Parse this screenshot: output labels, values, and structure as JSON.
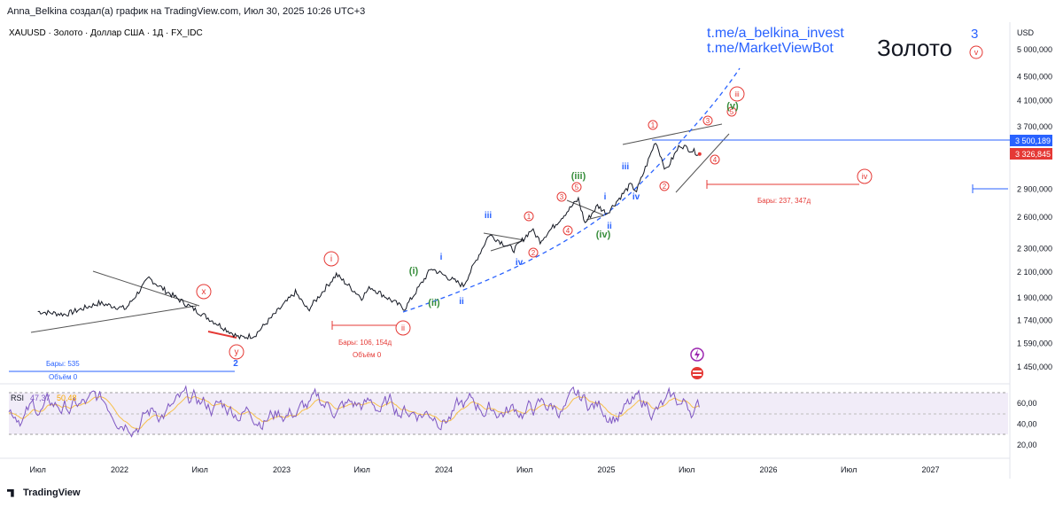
{
  "header": {
    "text": "Anna_Belkina создал(а) график на TradingView.com, Июл 30, 2025 10:26 UTC+3"
  },
  "symbol": {
    "text": "XAUUSD · Золото · Доллар США · 1Д · FX_IDC"
  },
  "watermark": {
    "link1": "t.me/a_belkina_invest",
    "link2": "t.me/MarketViewBot",
    "title": "Золото",
    "wave3": "3",
    "wave_v": "v"
  },
  "colors": {
    "up": "#26a69a",
    "bear": "#e53935",
    "blue": "#2962ff",
    "green": "#388e3c",
    "rsi": "#7e57c2",
    "rsi_ma": "#f7c04a"
  },
  "chart_data": {
    "type": "line",
    "title": "XAUUSD · Золото · Доллар США · 1Д · FX_IDC",
    "price_scale": {
      "unit": "USD",
      "ticks": [
        "5 000,000",
        "4 500,000",
        "4 100,000",
        "3 700,000",
        "2 900,000",
        "2 600,000",
        "2 300,000",
        "2 100,000",
        "1 900,000",
        "1 740,000",
        "1 590,000",
        "1 450,000"
      ]
    },
    "time_axis": [
      "Июл",
      "2022",
      "Июл",
      "2023",
      "Июл",
      "2024",
      "Июл",
      "2025",
      "Июл",
      "2026",
      "Июл",
      "2027"
    ],
    "price_path": [
      [
        "2021-07-01",
        1800
      ],
      [
        "2021-09-01",
        1780
      ],
      [
        "2021-11-15",
        1860
      ],
      [
        "2022-01-15",
        1820
      ],
      [
        "2022-03-08",
        2050
      ],
      [
        "2022-04-15",
        1950
      ],
      [
        "2022-06-01",
        1850
      ],
      [
        "2022-09-28",
        1625
      ],
      [
        "2022-11-01",
        1640
      ],
      [
        "2023-02-01",
        1940
      ],
      [
        "2023-03-01",
        1810
      ],
      [
        "2023-05-04",
        2080
      ],
      [
        "2023-06-30",
        1900
      ],
      [
        "2023-07-20",
        1980
      ],
      [
        "2023-10-05",
        1820
      ],
      [
        "2023-12-04",
        2130
      ],
      [
        "2024-02-14",
        1990
      ],
      [
        "2024-04-12",
        2430
      ],
      [
        "2024-06-07",
        2290
      ],
      [
        "2024-07-17",
        2480
      ],
      [
        "2024-08-05",
        2370
      ],
      [
        "2024-10-30",
        2790
      ],
      [
        "2024-11-14",
        2540
      ],
      [
        "2024-12-12",
        2720
      ],
      [
        "2025-01-02",
        2640
      ],
      [
        "2025-02-24",
        2950
      ],
      [
        "2025-03-10",
        2880
      ],
      [
        "2025-04-22",
        3500
      ],
      [
        "2025-05-15",
        3120
      ],
      [
        "2025-06-16",
        3450
      ],
      [
        "2025-07-30",
        3326.845
      ]
    ],
    "current_price": "3 326,845",
    "level_line": "3 500,189",
    "rsi": {
      "label": "RSI",
      "value": "47,37",
      "ma_value": "50,48",
      "ticks": [
        "60,00",
        "40,00",
        "20,00"
      ]
    },
    "annotations": {
      "bars1": "Бары: 535",
      "volume1": "Объём 0",
      "bars2": "Бары: 106, 154д",
      "volume2": "Объём 0",
      "bars3": "Бары: 237, 347д"
    },
    "elliott_waves": {
      "circled_red": [
        "x",
        "y",
        "i",
        "ii",
        "iii",
        "iv",
        "v"
      ],
      "numbered_red": [
        "1",
        "2",
        "3",
        "4",
        "5"
      ],
      "green": [
        "(i)",
        "(ii)",
        "(iii)",
        "(iv)",
        "(v)"
      ],
      "blue": [
        "i",
        "ii",
        "iii",
        "iv",
        "3",
        "2"
      ]
    }
  },
  "footer": {
    "brand": "TradingView"
  }
}
